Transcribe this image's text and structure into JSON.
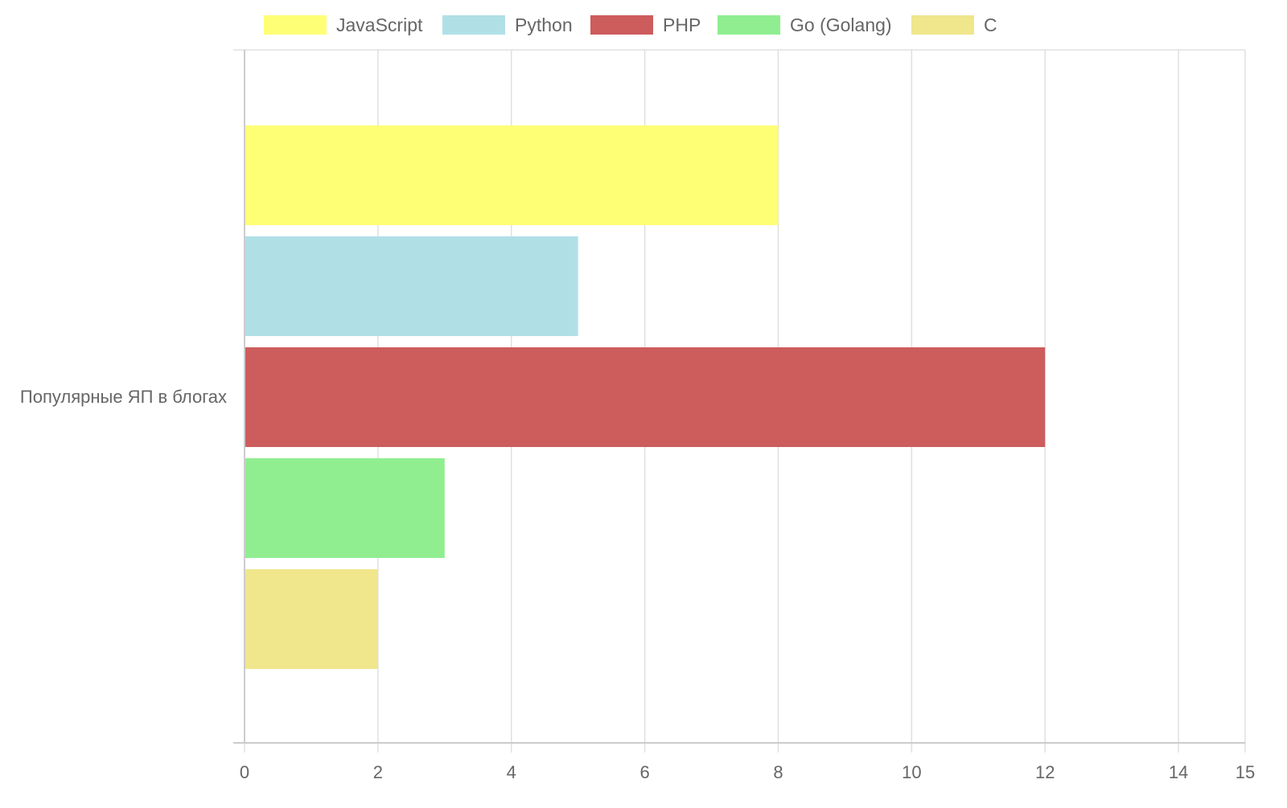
{
  "chart_data": {
    "type": "bar",
    "orientation": "horizontal",
    "categories": [
      "Популярные ЯП в блогах"
    ],
    "series": [
      {
        "name": "JavaScript",
        "values": [
          8
        ],
        "color": "#ffff76"
      },
      {
        "name": "Python",
        "values": [
          5
        ],
        "color": "#b0e0e6"
      },
      {
        "name": "PHP",
        "values": [
          12
        ],
        "color": "#cd5c5c"
      },
      {
        "name": "Go (Golang)",
        "values": [
          3
        ],
        "color": "#90ee90"
      },
      {
        "name": "C",
        "values": [
          2
        ],
        "color": "#f0e68c"
      }
    ],
    "x_ticks": [
      "0",
      "2",
      "4",
      "6",
      "8",
      "10",
      "12",
      "14",
      "15"
    ],
    "x_tick_values": [
      0,
      2,
      4,
      6,
      8,
      10,
      12,
      14,
      15
    ],
    "xlim": [
      0,
      15
    ],
    "grid": true,
    "legend_position": "top",
    "title": "",
    "xlabel": "",
    "ylabel": ""
  },
  "colors": {
    "grid": "#e0e0e0",
    "axis": "#cccccc",
    "text": "#666666"
  }
}
